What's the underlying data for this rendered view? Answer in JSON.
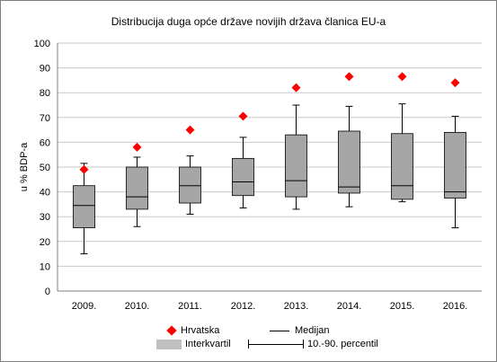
{
  "chart_data": {
    "type": "box",
    "title": "Distribucija duga opće države novijih država članica EU-a",
    "ylabel": "u % BDP-a",
    "xlabel": "",
    "ylim": [
      0,
      100
    ],
    "ytick_step": 10,
    "yticks": [
      "0",
      "10",
      "20",
      "30",
      "40",
      "50",
      "60",
      "70",
      "80",
      "90",
      "100"
    ],
    "categories": [
      "2009.",
      "2010.",
      "2011.",
      "2012.",
      "2013.",
      "2014.",
      "2015.",
      "2016."
    ],
    "series": [
      {
        "name": "Interkvartil",
        "q1": [
          25.5,
          33,
          35.5,
          38.5,
          38,
          39.5,
          37,
          37.5
        ],
        "q3": [
          42.5,
          50,
          50,
          53.5,
          63,
          64.5,
          63.5,
          64
        ],
        "color": "#a6a6a6"
      },
      {
        "name": "Medijan",
        "values": [
          34.5,
          38,
          42.5,
          44,
          44.5,
          42,
          42.5,
          40
        ]
      },
      {
        "name": "10.-90. percentil",
        "p10": [
          15,
          26,
          31,
          33.5,
          33,
          34,
          36,
          25.5
        ],
        "p90": [
          51.5,
          54,
          54.5,
          62,
          75,
          74.5,
          75.5,
          70.5
        ]
      },
      {
        "name": "Hrvatska",
        "values": [
          49,
          58,
          65,
          70.5,
          82,
          86.5,
          86.5,
          84
        ],
        "color": "#ff0000"
      }
    ],
    "grid": {
      "horizontal": true
    },
    "legend": {
      "placement": "bottom",
      "hrvatska": "Hrvatska",
      "medijan": "Medijan",
      "interkvartil": "Interkvartil",
      "percentil": "10.-90. percentil"
    }
  }
}
